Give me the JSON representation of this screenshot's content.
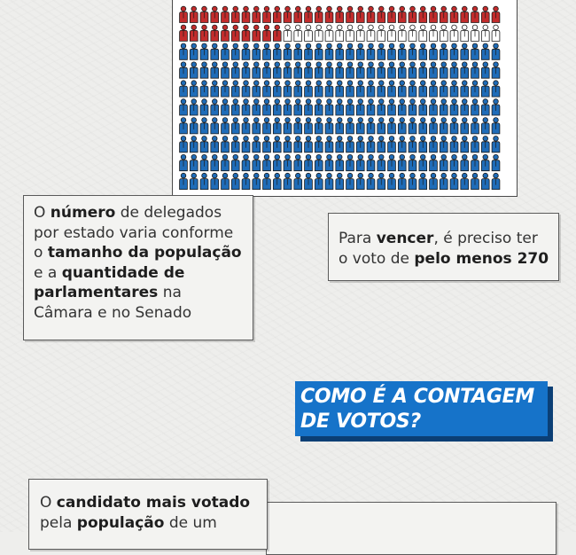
{
  "electoral_chart": {
    "figure_colors": {
      "red": "#c22c2c",
      "white": "#ffffff",
      "blue": "#1f6cb8",
      "outline": "#1c1c1c"
    },
    "cols": 31,
    "rows": 10,
    "red_count": 41,
    "white_count": 21,
    "blue_count": 248
  },
  "delegates_box": {
    "l1_a": "O ",
    "l1_b": "número",
    "l1_c": " de delegados",
    "l2": "por estado varia conforme",
    "l3_a": "o ",
    "l3_b": "tamanho da população",
    "l4_a": "e a ",
    "l4_b": "quantidade de",
    "l5_a": "parlamentares",
    "l5_b": " na",
    "l6": "Câmara e no Senado"
  },
  "win_box": {
    "l1_a": "Para ",
    "l1_b": "vencer",
    "l1_c": ", é preciso ter",
    "l2_a": "o voto de ",
    "l2_b": "pelo menos 270"
  },
  "section_heading": {
    "line1": "COMO É A CONTAGEM",
    "line2": "DE VOTOS?"
  },
  "candidate_box": {
    "l1_a": "O ",
    "l1_b": "candidato mais votado",
    "l2_a": "pela ",
    "l2_b": "população",
    "l2_c": " de um"
  }
}
